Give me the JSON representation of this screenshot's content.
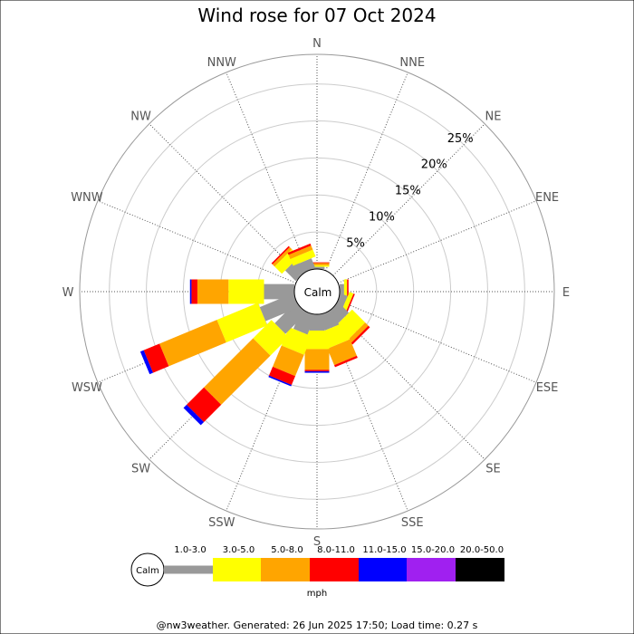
{
  "chart_data": {
    "type": "wind-rose",
    "title": "Wind rose for 07 Oct 2024",
    "directions": [
      "N",
      "NNE",
      "NE",
      "ENE",
      "E",
      "ESE",
      "SE",
      "SSE",
      "S",
      "SSW",
      "SW",
      "WSW",
      "W",
      "WNW",
      "NW",
      "NNW"
    ],
    "radial_ticks": [
      5,
      10,
      15,
      20,
      25
    ],
    "radial_tick_labels": [
      "5%",
      "10%",
      "15%",
      "20%",
      "25%"
    ],
    "radial_max": 29,
    "calm_label": "Calm",
    "calm_fraction": 3.5,
    "speed_bins": [
      {
        "label": "1.0-3.0",
        "color": "#999999"
      },
      {
        "label": "3.0-5.0",
        "color": "#ffff00"
      },
      {
        "label": "5.0-8.0",
        "color": "#ffa500"
      },
      {
        "label": "8.0-11.0",
        "color": "#ff0000"
      },
      {
        "label": "11.0-15.0",
        "color": "#0000ff"
      },
      {
        "label": "15.0-20.0",
        "color": "#a020f0"
      },
      {
        "label": "20.0-50.0",
        "color": "#000000"
      }
    ],
    "units": "mph",
    "series": [
      {
        "direction": "N",
        "values": [
          0.3,
          0.2,
          0.3,
          0.1,
          0,
          0,
          0
        ]
      },
      {
        "direction": "NNE",
        "values": [
          0,
          0,
          0,
          0,
          0,
          0,
          0
        ]
      },
      {
        "direction": "NE",
        "values": [
          0,
          0,
          0,
          0,
          0,
          0,
          0
        ]
      },
      {
        "direction": "ENE",
        "values": [
          0,
          0,
          0,
          0,
          0,
          0,
          0
        ]
      },
      {
        "direction": "E",
        "values": [
          0.6,
          0.4,
          0,
          0.2,
          0,
          0,
          0
        ]
      },
      {
        "direction": "ESE",
        "values": [
          1.0,
          0.6,
          0,
          0.2,
          0,
          0,
          0
        ]
      },
      {
        "direction": "SE",
        "values": [
          2.0,
          2.5,
          0.6,
          0.3,
          0,
          0,
          0
        ]
      },
      {
        "direction": "SSE",
        "values": [
          2.2,
          2.4,
          2.4,
          0.3,
          0,
          0,
          0
        ]
      },
      {
        "direction": "S",
        "values": [
          2.2,
          2.5,
          2.8,
          0.2,
          0.2,
          0,
          0
        ]
      },
      {
        "direction": "SSW",
        "values": [
          2.8,
          2.7,
          3.1,
          1.3,
          0.2,
          0,
          0
        ]
      },
      {
        "direction": "SW",
        "values": [
          4.0,
          3.5,
          9.4,
          3.3,
          0.6,
          0,
          0
        ]
      },
      {
        "direction": "WSW",
        "values": [
          4.9,
          6.0,
          8.4,
          2.3,
          0.5,
          0,
          0
        ]
      },
      {
        "direction": "W",
        "values": [
          4.1,
          4.8,
          4.2,
          0.8,
          0.2,
          0,
          0
        ]
      },
      {
        "direction": "WNW",
        "values": [
          0,
          0,
          0,
          0,
          0,
          0,
          0
        ]
      },
      {
        "direction": "NW",
        "values": [
          2.0,
          1.4,
          0.4,
          0.2,
          0,
          0,
          0
        ]
      },
      {
        "direction": "NNW",
        "values": [
          1.4,
          1.0,
          0.6,
          0.3,
          0,
          0,
          0
        ]
      }
    ]
  },
  "footer": "@nw3weather. Generated: 26 Jun 2025 17:50; Load time: 0.27 s"
}
